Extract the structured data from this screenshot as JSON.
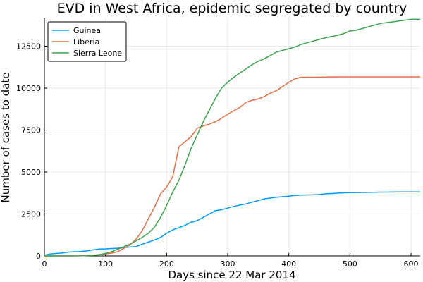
{
  "chart_data": {
    "type": "line",
    "title": "EVD in West Africa, epidemic segregated by country",
    "xlabel": "Days since 22 Mar 2014",
    "ylabel": "Number of cases to date",
    "xlim": [
      0,
      615
    ],
    "ylim": [
      0,
      14200
    ],
    "xticks": [
      0,
      100,
      200,
      300,
      400,
      500,
      600
    ],
    "xtick_labels": [
      "0",
      "100",
      "200",
      "300",
      "400",
      "500",
      "600"
    ],
    "yticks": [
      0,
      2500,
      5000,
      7500,
      10000,
      12500
    ],
    "ytick_labels": [
      "0",
      "2500",
      "5000",
      "7500",
      "10000",
      "12500"
    ],
    "grid": true,
    "legend_position": "top-left",
    "series": [
      {
        "name": "Guinea",
        "color": "#009af9",
        "x": [
          0,
          10,
          30,
          40,
          60,
          70,
          80,
          90,
          100,
          110,
          120,
          130,
          140,
          150,
          160,
          170,
          180,
          190,
          200,
          210,
          220,
          230,
          240,
          250,
          260,
          270,
          280,
          290,
          300,
          310,
          320,
          330,
          340,
          350,
          360,
          370,
          380,
          390,
          400,
          410,
          420,
          440,
          450,
          460,
          470,
          480,
          490,
          500,
          520,
          540,
          550,
          560,
          580,
          600,
          615
        ],
        "y": [
          50,
          120,
          180,
          230,
          270,
          300,
          360,
          410,
          420,
          440,
          460,
          490,
          530,
          560,
          700,
          820,
          950,
          1100,
          1350,
          1550,
          1680,
          1820,
          2000,
          2100,
          2300,
          2500,
          2700,
          2750,
          2850,
          2950,
          3030,
          3100,
          3200,
          3300,
          3400,
          3450,
          3500,
          3530,
          3560,
          3600,
          3620,
          3640,
          3660,
          3700,
          3720,
          3740,
          3760,
          3770,
          3780,
          3790,
          3800,
          3800,
          3810,
          3810,
          3810
        ]
      },
      {
        "name": "Liberia",
        "color": "#e26f46",
        "x": [
          0,
          20,
          40,
          60,
          70,
          80,
          90,
          100,
          110,
          120,
          130,
          140,
          150,
          160,
          170,
          180,
          190,
          200,
          210,
          220,
          230,
          240,
          250,
          260,
          270,
          280,
          290,
          300,
          310,
          320,
          330,
          340,
          350,
          360,
          370,
          380,
          390,
          400,
          410,
          420,
          440,
          460,
          480,
          500,
          540,
          580,
          615
        ],
        "y": [
          0,
          0,
          0,
          10,
          20,
          40,
          80,
          120,
          170,
          250,
          450,
          650,
          1000,
          1500,
          2200,
          2900,
          3700,
          4100,
          4700,
          6500,
          6800,
          7100,
          7600,
          7750,
          7850,
          8000,
          8200,
          8450,
          8650,
          8850,
          9150,
          9280,
          9350,
          9500,
          9700,
          9850,
          10100,
          10350,
          10550,
          10650,
          10650,
          10660,
          10670,
          10670,
          10670,
          10670,
          10670
        ]
      },
      {
        "name": "Sierra Leone",
        "color": "#3da44d",
        "x": [
          0,
          40,
          60,
          80,
          90,
          100,
          110,
          120,
          130,
          140,
          150,
          160,
          170,
          180,
          190,
          200,
          210,
          220,
          230,
          240,
          250,
          260,
          270,
          280,
          290,
          300,
          310,
          320,
          330,
          340,
          350,
          360,
          370,
          380,
          390,
          400,
          410,
          420,
          430,
          440,
          450,
          460,
          480,
          490,
          500,
          510,
          520,
          530,
          540,
          550,
          560,
          570,
          580,
          590,
          600,
          615
        ],
        "y": [
          0,
          0,
          10,
          40,
          80,
          150,
          250,
          400,
          550,
          700,
          900,
          1100,
          1350,
          1700,
          2300,
          3000,
          3800,
          4500,
          5400,
          6400,
          7200,
          8000,
          8700,
          9400,
          10000,
          10350,
          10650,
          10900,
          11150,
          11400,
          11600,
          11750,
          11950,
          12150,
          12250,
          12350,
          12450,
          12600,
          12700,
          12800,
          12900,
          13000,
          13150,
          13250,
          13400,
          13450,
          13550,
          13650,
          13750,
          13850,
          13900,
          13950,
          14000,
          14050,
          14100,
          14100
        ]
      }
    ]
  }
}
